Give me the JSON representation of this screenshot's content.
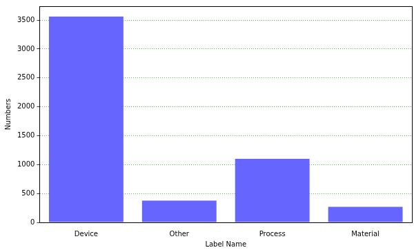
{
  "chart_data": {
    "type": "bar",
    "x_label": "Label Name",
    "y_label": "Numbers",
    "categories": [
      "Device",
      "Other",
      "Process",
      "Material"
    ],
    "values": [
      3560,
      375,
      1100,
      270
    ],
    "color": "#6666ff",
    "ylim": [
      0,
      3740
    ],
    "yticks": [
      0,
      500,
      1000,
      1500,
      2000,
      2500,
      3000,
      3500
    ],
    "grid": true
  }
}
